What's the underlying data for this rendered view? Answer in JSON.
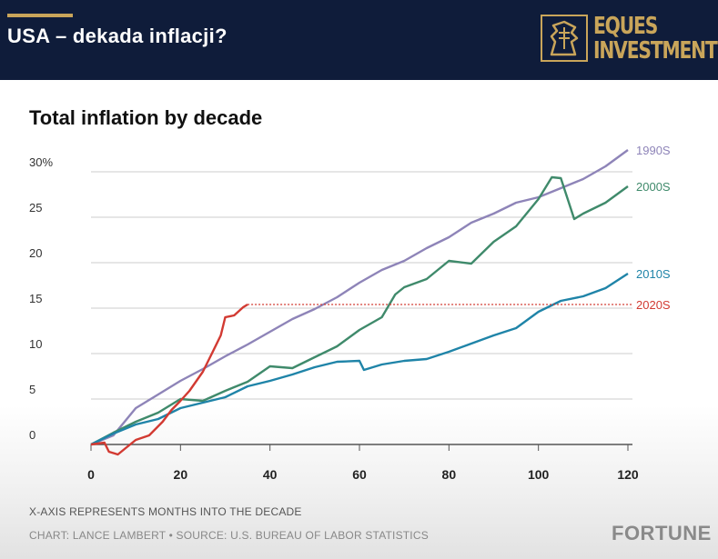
{
  "header": {
    "title": "USA – dekada inflacji?",
    "brand_line1": "EQUES",
    "brand_line2": "INVESTMENT",
    "accent_color": "#c9a55a",
    "background_color": "#0f1c3a"
  },
  "chart_data": {
    "type": "line",
    "title": "Total inflation by decade",
    "xlabel": "",
    "ylabel": "",
    "xlim": [
      0,
      120
    ],
    "ylim": [
      0,
      30
    ],
    "x_ticks": [
      "0",
      "20",
      "40",
      "60",
      "80",
      "100",
      "120"
    ],
    "y_ticks": [
      "0",
      "5",
      "10",
      "15",
      "20",
      "25",
      "30%"
    ],
    "grid": "horizontal",
    "legend": "inline-right",
    "series": [
      {
        "name": "1990S",
        "color": "#8e84b8",
        "points": [
          [
            0,
            0
          ],
          [
            5,
            1
          ],
          [
            10,
            4
          ],
          [
            15,
            5.5
          ],
          [
            20,
            7
          ],
          [
            25,
            8.3
          ],
          [
            30,
            9.7
          ],
          [
            35,
            11
          ],
          [
            40,
            12.4
          ],
          [
            45,
            13.8
          ],
          [
            50,
            14.9
          ],
          [
            55,
            16.2
          ],
          [
            60,
            17.8
          ],
          [
            65,
            19.2
          ],
          [
            70,
            20.2
          ],
          [
            75,
            21.6
          ],
          [
            80,
            22.8
          ],
          [
            85,
            24.4
          ],
          [
            90,
            25.4
          ],
          [
            95,
            26.6
          ],
          [
            100,
            27.2
          ],
          [
            105,
            28.2
          ],
          [
            110,
            29.2
          ],
          [
            115,
            30.6
          ],
          [
            120,
            32.4
          ]
        ]
      },
      {
        "name": "2000S",
        "color": "#3f8a6b",
        "points": [
          [
            0,
            0
          ],
          [
            5,
            1.3
          ],
          [
            10,
            2.5
          ],
          [
            15,
            3.5
          ],
          [
            20,
            5
          ],
          [
            25,
            4.8
          ],
          [
            30,
            5.9
          ],
          [
            35,
            6.9
          ],
          [
            40,
            8.6
          ],
          [
            45,
            8.4
          ],
          [
            50,
            9.6
          ],
          [
            55,
            10.8
          ],
          [
            60,
            12.6
          ],
          [
            65,
            14
          ],
          [
            68,
            16.5
          ],
          [
            70,
            17.3
          ],
          [
            75,
            18.2
          ],
          [
            80,
            20.2
          ],
          [
            85,
            19.9
          ],
          [
            90,
            22.3
          ],
          [
            95,
            24
          ],
          [
            100,
            27
          ],
          [
            103,
            29.4
          ],
          [
            105,
            29.3
          ],
          [
            108,
            24.8
          ],
          [
            110,
            25.4
          ],
          [
            115,
            26.6
          ],
          [
            120,
            28.4
          ]
        ]
      },
      {
        "name": "2010S",
        "color": "#1f84a8",
        "points": [
          [
            0,
            0
          ],
          [
            5,
            1.2
          ],
          [
            10,
            2.2
          ],
          [
            15,
            2.8
          ],
          [
            20,
            4
          ],
          [
            25,
            4.6
          ],
          [
            30,
            5.2
          ],
          [
            35,
            6.4
          ],
          [
            40,
            7
          ],
          [
            45,
            7.7
          ],
          [
            50,
            8.5
          ],
          [
            55,
            9.1
          ],
          [
            60,
            9.2
          ],
          [
            61,
            8.2
          ],
          [
            65,
            8.8
          ],
          [
            70,
            9.2
          ],
          [
            75,
            9.4
          ],
          [
            80,
            10.2
          ],
          [
            85,
            11.1
          ],
          [
            90,
            12
          ],
          [
            95,
            12.8
          ],
          [
            100,
            14.6
          ],
          [
            105,
            15.8
          ],
          [
            110,
            16.3
          ],
          [
            115,
            17.2
          ],
          [
            120,
            18.8
          ]
        ]
      },
      {
        "name": "2020S",
        "color": "#d23a32",
        "points": [
          [
            0,
            0
          ],
          [
            3,
            0.2
          ],
          [
            4,
            -0.8
          ],
          [
            6,
            -1.1
          ],
          [
            8,
            -0.3
          ],
          [
            10,
            0.5
          ],
          [
            13,
            1
          ],
          [
            16,
            2.5
          ],
          [
            18,
            3.8
          ],
          [
            20,
            4.8
          ],
          [
            22,
            5.9
          ],
          [
            25,
            8
          ],
          [
            27,
            10
          ],
          [
            29,
            12
          ],
          [
            30,
            14
          ],
          [
            32,
            14.2
          ],
          [
            34,
            15.1
          ],
          [
            35,
            15.4
          ]
        ],
        "projection": 15.4
      }
    ]
  },
  "footnotes": {
    "axis_note": "X-AXIS REPRESENTS MONTHS INTO THE DECADE",
    "source": "CHART: LANCE LAMBERT • SOURCE: U.S. BUREAU OF LABOR STATISTICS",
    "publisher": "FORTUNE"
  }
}
